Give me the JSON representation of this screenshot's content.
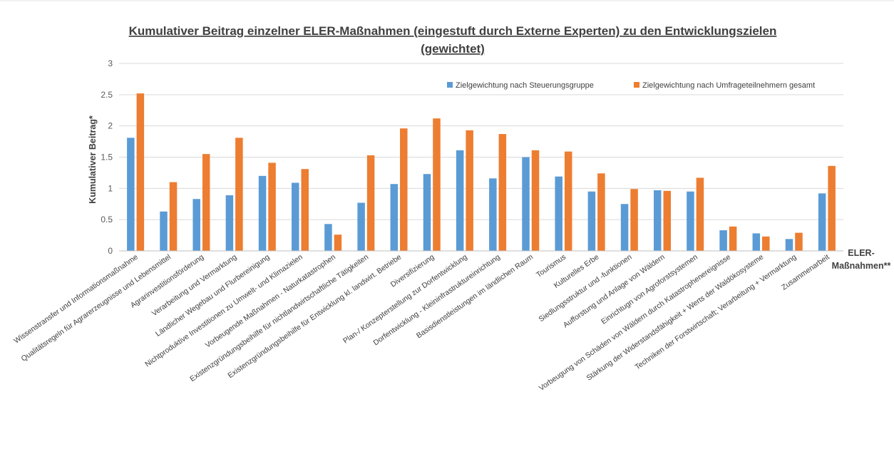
{
  "chart_data": {
    "type": "bar",
    "title_line1": "Kumulativer Beitrag einzelner ELER-Maßnahmen (eingestuft durch Externe Experten) zu den Entwicklungszielen",
    "title_line2": "(gewichtet)",
    "ylabel": "Kumulativer Beitrag*",
    "xlabel_line1": "ELER-",
    "xlabel_line2": "Maßnahmen**",
    "ylim": [
      0,
      3
    ],
    "yticks": [
      "0",
      "0.5",
      "1",
      "1.5",
      "2",
      "2.5",
      "3"
    ],
    "grid": true,
    "legend_position": "top-right",
    "categories": [
      "Wissenstransfer und Informationsmaßnahme",
      "Qualitätsregeln für Agrarerzeugnisse und Lebensmittel",
      "Agrarinvestitionsförderung",
      "Verarbeitung und Vermarktung",
      "Ländlicher Wegebau und Flurbereinigung",
      "Nichtproduktive Investitionen zu Umwelt- und Klimazielen",
      "Vorbeugende Maßnahmen - Naturkatastrophen",
      "Existenzgründungsbeihilfe für nichtlandwirtschaftliche Tätigkeiten",
      "Existenzgründungsbeihilfe für Entwicklung kl. landwirt. Betriebe",
      "Diversifizierung",
      "Plan-/ Konzepterstellung zur Dorfentwicklung",
      "Dorfentwicklung - Kleininfrastruktureinrichtung",
      "Basisdienstleistungen im ländlichen Raum",
      "Tourismus",
      "Kulturelles Erbe",
      "Siedlungsstruktur und -funktionen",
      "Aufforstung und Anlage von Wäldern",
      "Einrichtugn von Agroforstsystemen",
      "Vorbeugung von Schäden von Wäldern durch Katastrophenereignisse",
      "Stärkung der Widerstandsfähigkeit + Werts der Waldökosysteme",
      "Techniken der Forstwirtschaft; Verarbeitung + Vermarktung",
      "Zusammenarbeit"
    ],
    "series": [
      {
        "name": "Zielgewichtung nach Steuerungsgruppe",
        "color": "#5b9bd5",
        "values": [
          1.81,
          0.63,
          0.83,
          0.89,
          1.2,
          1.09,
          0.43,
          0.77,
          1.07,
          1.23,
          1.61,
          1.16,
          1.5,
          1.19,
          0.95,
          0.75,
          0.97,
          0.95,
          0.33,
          0.28,
          0.19,
          0.92
        ]
      },
      {
        "name": "Zielgewichtung nach Umfrageteilnehmern gesamt",
        "color": "#ed7d31",
        "values": [
          2.52,
          1.1,
          1.55,
          1.81,
          1.41,
          1.31,
          0.26,
          1.53,
          1.96,
          2.12,
          1.93,
          1.87,
          1.61,
          1.59,
          1.24,
          0.99,
          0.96,
          1.17,
          0.39,
          0.23,
          0.29,
          1.36
        ]
      }
    ]
  }
}
